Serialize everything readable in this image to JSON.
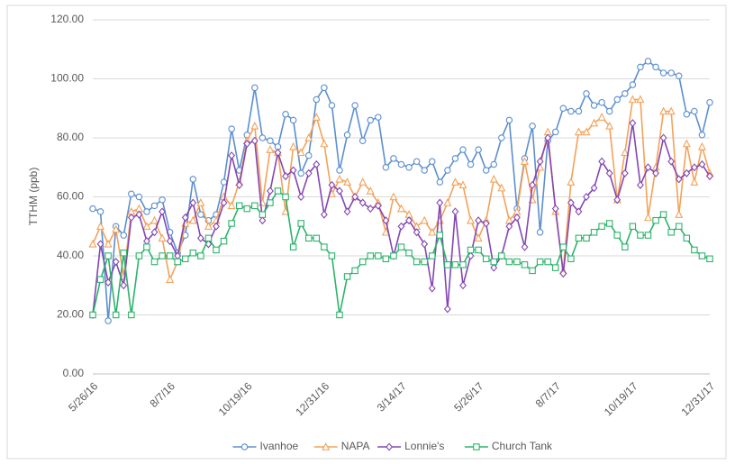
{
  "chart_data": {
    "type": "line",
    "y_label": "TTHM (ppb)",
    "categories": [
      "5/26/16",
      null,
      null,
      null,
      null,
      null,
      null,
      null,
      null,
      null,
      "8/7/16",
      null,
      null,
      null,
      null,
      null,
      null,
      null,
      null,
      null,
      "10/19/16",
      null,
      null,
      null,
      null,
      null,
      null,
      null,
      null,
      null,
      "12/31/16",
      null,
      null,
      null,
      null,
      null,
      null,
      null,
      null,
      null,
      "3/14/17",
      null,
      null,
      null,
      null,
      null,
      null,
      null,
      null,
      null,
      "5/26/17",
      null,
      null,
      null,
      null,
      null,
      null,
      null,
      null,
      null,
      "8/7/17",
      null,
      null,
      null,
      null,
      null,
      null,
      null,
      null,
      null,
      "10/19/17",
      null,
      null,
      null,
      null,
      null,
      null,
      null,
      null,
      null,
      "12/31/17"
    ],
    "series": [
      {
        "name": "Ivanhoe",
        "color": "#5b8fd0",
        "marker": "circle",
        "values": [
          56,
          55,
          18,
          50,
          47,
          61,
          60,
          55,
          57,
          59,
          48,
          41,
          47,
          66,
          54,
          52,
          54,
          65,
          83,
          69,
          81,
          97,
          80,
          79,
          77,
          88,
          86,
          68,
          74,
          93,
          97,
          91,
          69,
          81,
          91,
          79,
          86,
          87,
          70,
          73,
          71,
          70,
          72,
          69,
          72,
          65,
          69,
          73,
          76,
          71,
          76,
          69,
          71,
          80,
          86,
          56,
          73,
          84,
          48,
          79,
          82,
          90,
          89,
          89,
          95,
          91,
          92,
          89,
          93,
          95,
          98,
          104,
          106,
          104,
          102,
          102,
          101,
          88,
          89,
          81,
          92
        ]
      },
      {
        "name": "NAPA",
        "color": "#f4a259",
        "marker": "triangle",
        "values": [
          44,
          50,
          44,
          49,
          33,
          55,
          56,
          50,
          52,
          46,
          32,
          38,
          51,
          52,
          58,
          50,
          52,
          60,
          57,
          65,
          79,
          84,
          58,
          76,
          75,
          55,
          77,
          75,
          80,
          87,
          78,
          61,
          66,
          65,
          60,
          65,
          62,
          58,
          48,
          60,
          56,
          54,
          50,
          52,
          48,
          52,
          58,
          65,
          64,
          52,
          46,
          52,
          66,
          63,
          52,
          55,
          72,
          59,
          70,
          82,
          55,
          35,
          65,
          82,
          82,
          85,
          87,
          84,
          59,
          75,
          93,
          93,
          53,
          70,
          89,
          89,
          54,
          78,
          65,
          77,
          68
        ]
      },
      {
        "name": "Lonnie's",
        "color": "#8446b4",
        "marker": "diamond",
        "values": [
          20,
          44,
          31,
          38,
          30,
          53,
          54,
          45,
          48,
          55,
          45,
          40,
          53,
          58,
          46,
          44,
          50,
          58,
          74,
          64,
          78,
          79,
          52,
          62,
          75,
          67,
          69,
          60,
          68,
          71,
          54,
          64,
          62,
          55,
          60,
          58,
          56,
          57,
          52,
          40,
          50,
          52,
          48,
          44,
          29,
          58,
          22,
          55,
          30,
          40,
          52,
          51,
          36,
          40,
          50,
          53,
          43,
          64,
          72,
          80,
          56,
          34,
          58,
          55,
          60,
          63,
          72,
          68,
          59,
          68,
          85,
          64,
          70,
          68,
          80,
          72,
          66,
          68,
          70,
          71,
          67
        ]
      },
      {
        "name": "Church Tank",
        "color": "#2bb46a",
        "marker": "square",
        "values": [
          20,
          32,
          40,
          20,
          41,
          20,
          40,
          43,
          38,
          40,
          40,
          38,
          39,
          41,
          40,
          46,
          42,
          45,
          51,
          57,
          56,
          57,
          54,
          58,
          62,
          60,
          43,
          51,
          46,
          46,
          43,
          40,
          20,
          33,
          35,
          38,
          40,
          40,
          39,
          40,
          43,
          41,
          38,
          38,
          40,
          47,
          37,
          37,
          37,
          42,
          42,
          39,
          38,
          40,
          38,
          38,
          37,
          35,
          38,
          38,
          36,
          43,
          39,
          46,
          46,
          48,
          50,
          51,
          47,
          43,
          50,
          47,
          47,
          52,
          54,
          48,
          50,
          46,
          42,
          40,
          39
        ]
      }
    ],
    "ylim": [
      0,
      120
    ],
    "yticks": [
      {
        "value": 0,
        "label": "0.00"
      },
      {
        "value": 20,
        "label": "20.00"
      },
      {
        "value": 40,
        "label": "40.00"
      },
      {
        "value": 60,
        "label": "60.00"
      },
      {
        "value": 80,
        "label": "80.00"
      },
      {
        "value": 100,
        "label": "100.00"
      },
      {
        "value": 120,
        "label": "120.00"
      }
    ],
    "grid": true,
    "legend": "bottom"
  }
}
